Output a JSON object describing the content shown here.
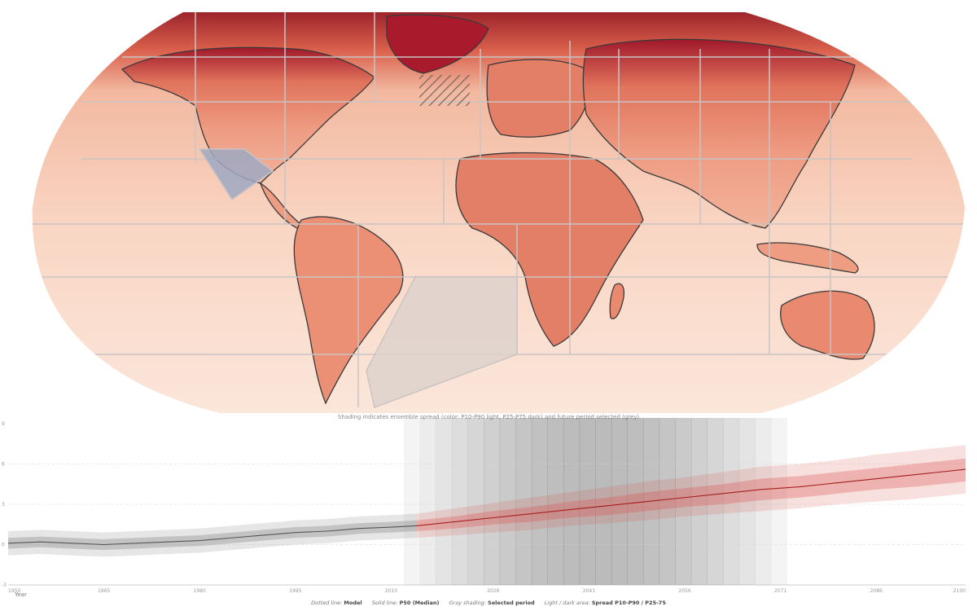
{
  "map": {
    "colors": {
      "ocean": "#f8dccb",
      "land": "#ef9c80",
      "hot": "#7a0c1c",
      "warm": "#e07a63",
      "region_border": "#c9c4c4",
      "selected_region": "#9fa8c2",
      "selected_ocean": "#ddd2cc"
    },
    "hatch_icon": "hatched-non-significance-icon"
  },
  "caption": "Shading indicates ensemble spread (color: P10-P90 light, P25-P75 dark) and future period selected (grey)",
  "legend": {
    "dotted_prefix": "Dotted line:",
    "dotted_value": "Model",
    "solid_prefix": "Solid line:",
    "solid_value": "P50 (Median)",
    "gray_prefix": "Gray shading:",
    "gray_value": "Selected period",
    "area_prefix": "Light / dark area:",
    "area_value": "Spread P10-P90 / P25-75"
  },
  "chart_data": {
    "type": "line",
    "title": "",
    "xlabel": "Year",
    "ylabel": "",
    "xlim": [
      1950,
      2100
    ],
    "ylim": [
      -3,
      9
    ],
    "x_ticks": [
      "1950",
      "1965",
      "1980",
      "1995",
      "2010",
      "2026",
      "2041",
      "2056",
      "2071",
      "2086",
      "2100"
    ],
    "y_ticks": [
      "9",
      "6",
      "3",
      "0",
      "-3"
    ],
    "grid": "horizontal dashed",
    "selected_period": [
      2012,
      2072
    ],
    "colors": {
      "historical": "#8c8c8c",
      "future": "#d9534f",
      "median_future": "#a51f1f"
    },
    "series": [
      {
        "period": "historical",
        "x": [
          1950,
          1955,
          1960,
          1965,
          1970,
          1975,
          1980,
          1985,
          1990,
          1995,
          2000,
          2005,
          2010,
          2014
        ],
        "p50": [
          0.1,
          0.2,
          0.1,
          0.0,
          0.1,
          0.2,
          0.3,
          0.5,
          0.7,
          0.9,
          1.0,
          1.2,
          1.3,
          1.4
        ],
        "p25": [
          -0.3,
          -0.2,
          -0.3,
          -0.4,
          -0.3,
          -0.2,
          -0.1,
          0.1,
          0.3,
          0.5,
          0.6,
          0.8,
          0.9,
          1.0
        ],
        "p75": [
          0.5,
          0.6,
          0.5,
          0.4,
          0.5,
          0.6,
          0.7,
          0.9,
          1.1,
          1.3,
          1.4,
          1.6,
          1.7,
          1.8
        ],
        "p10": [
          -0.8,
          -0.7,
          -0.8,
          -0.9,
          -0.8,
          -0.7,
          -0.6,
          -0.4,
          -0.2,
          0.0,
          0.1,
          0.3,
          0.4,
          0.5
        ],
        "p90": [
          1.0,
          1.1,
          1.0,
          0.9,
          1.0,
          1.1,
          1.2,
          1.4,
          1.6,
          1.8,
          1.9,
          2.1,
          2.2,
          2.3
        ]
      },
      {
        "period": "future",
        "x": [
          2014,
          2020,
          2026,
          2032,
          2038,
          2044,
          2050,
          2056,
          2062,
          2068,
          2074,
          2080,
          2086,
          2092,
          2100
        ],
        "p50": [
          1.4,
          1.7,
          2.0,
          2.3,
          2.6,
          2.9,
          3.2,
          3.5,
          3.8,
          4.1,
          4.3,
          4.6,
          4.9,
          5.2,
          5.6
        ],
        "p25": [
          1.0,
          1.2,
          1.5,
          1.7,
          2.0,
          2.2,
          2.5,
          2.8,
          3.0,
          3.3,
          3.5,
          3.8,
          4.1,
          4.3,
          4.7
        ],
        "p75": [
          1.8,
          2.1,
          2.5,
          2.8,
          3.2,
          3.5,
          3.9,
          4.2,
          4.5,
          4.9,
          5.1,
          5.4,
          5.7,
          6.0,
          6.4
        ],
        "p10": [
          0.5,
          0.7,
          0.9,
          1.1,
          1.4,
          1.6,
          1.8,
          2.1,
          2.3,
          2.5,
          2.7,
          3.0,
          3.2,
          3.4,
          3.8
        ],
        "p90": [
          2.3,
          2.7,
          3.1,
          3.5,
          3.9,
          4.3,
          4.7,
          5.0,
          5.4,
          5.8,
          6.0,
          6.3,
          6.7,
          7.0,
          7.4
        ]
      }
    ]
  }
}
